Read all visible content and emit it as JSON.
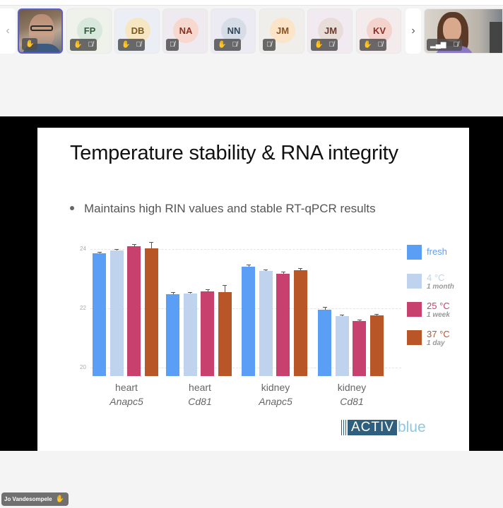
{
  "participants_bar": {
    "prev_label": "‹",
    "next_label": "›",
    "tiles": [
      {
        "type": "video",
        "name": "Jo Vandesompele",
        "active": true,
        "icons": [
          "raised-hand"
        ]
      },
      {
        "type": "avatar",
        "initials": "FP",
        "bg": "#d8e8dc",
        "fg": "#2f5a3c",
        "tile_bg": "#eef2ea",
        "icons": [
          "raised-hand",
          "mic-off"
        ]
      },
      {
        "type": "avatar",
        "initials": "DB",
        "bg": "#f6e7c2",
        "fg": "#7a5a1c",
        "tile_bg": "#eceef5",
        "icons": [
          "raised-hand",
          "mic-off"
        ]
      },
      {
        "type": "avatar",
        "initials": "NA",
        "bg": "#f6d8cf",
        "fg": "#8a2e1e",
        "tile_bg": "#efeaf0",
        "icons": [
          "mic-off"
        ]
      },
      {
        "type": "avatar",
        "initials": "NN",
        "bg": "#d6dde6",
        "fg": "#2e4558",
        "tile_bg": "#eceaf3",
        "icons": [
          "raised-hand",
          "mic-off"
        ]
      },
      {
        "type": "avatar",
        "initials": "JM",
        "bg": "#fbe4c8",
        "fg": "#8a5220",
        "tile_bg": "#efeeea",
        "icons": [
          "mic-off"
        ]
      },
      {
        "type": "avatar",
        "initials": "JM",
        "bg": "#e9ddd9",
        "fg": "#6b3a2e",
        "tile_bg": "#f1ebf1",
        "icons": [
          "raised-hand",
          "mic-off"
        ]
      },
      {
        "type": "avatar",
        "initials": "KV",
        "bg": "#f3d3cc",
        "fg": "#8a2e22",
        "tile_bg": "#f4ecec",
        "icons": [
          "raised-hand",
          "mic-off"
        ]
      }
    ],
    "spotlight": {
      "type": "video",
      "icons": [
        "signal-bars",
        "mic-off"
      ]
    }
  },
  "slide": {
    "title": "Temperature stability & RNA integrity",
    "bullet": "Maintains high RIN values and stable RT-qPCR results",
    "logo": {
      "part1": "ACTIV",
      "part2": "blue"
    }
  },
  "chart_data": {
    "type": "bar",
    "title": "",
    "xlabel": "",
    "ylabel": "",
    "ylim": [
      19.74,
      24.4
    ],
    "yticks": [
      20,
      22,
      24
    ],
    "grid": true,
    "legend_position": "right",
    "categories": [
      {
        "tissue": "heart",
        "gene": "Anapc5"
      },
      {
        "tissue": "heart",
        "gene": "Cd81"
      },
      {
        "tissue": "kidney",
        "gene": "Anapc5"
      },
      {
        "tissue": "kidney",
        "gene": "Cd81"
      }
    ],
    "series": [
      {
        "name": "fresh",
        "sub": "",
        "color": "#5b9ef5",
        "values": [
          23.85,
          22.48,
          23.4,
          21.95
        ],
        "errors": [
          0.05,
          0.06,
          0.07,
          0.09
        ]
      },
      {
        "name": "4 °C",
        "sub": "1 month",
        "color": "#bfd3ef",
        "values": [
          23.95,
          22.5,
          23.26,
          21.74
        ],
        "errors": [
          0.05,
          0.05,
          0.05,
          0.05
        ]
      },
      {
        "name": "25 °C",
        "sub": "1 week",
        "color": "#c7406e",
        "values": [
          24.1,
          22.57,
          23.17,
          21.57
        ],
        "errors": [
          0.07,
          0.08,
          0.06,
          0.06
        ]
      },
      {
        "name": "37 °C",
        "sub": "1 day",
        "color": "#b85627",
        "values": [
          24.02,
          22.55,
          23.29,
          21.76
        ],
        "errors": [
          0.22,
          0.23,
          0.07,
          0.06
        ]
      }
    ]
  },
  "name_tag": {
    "label": "Jo Vandesompele"
  }
}
